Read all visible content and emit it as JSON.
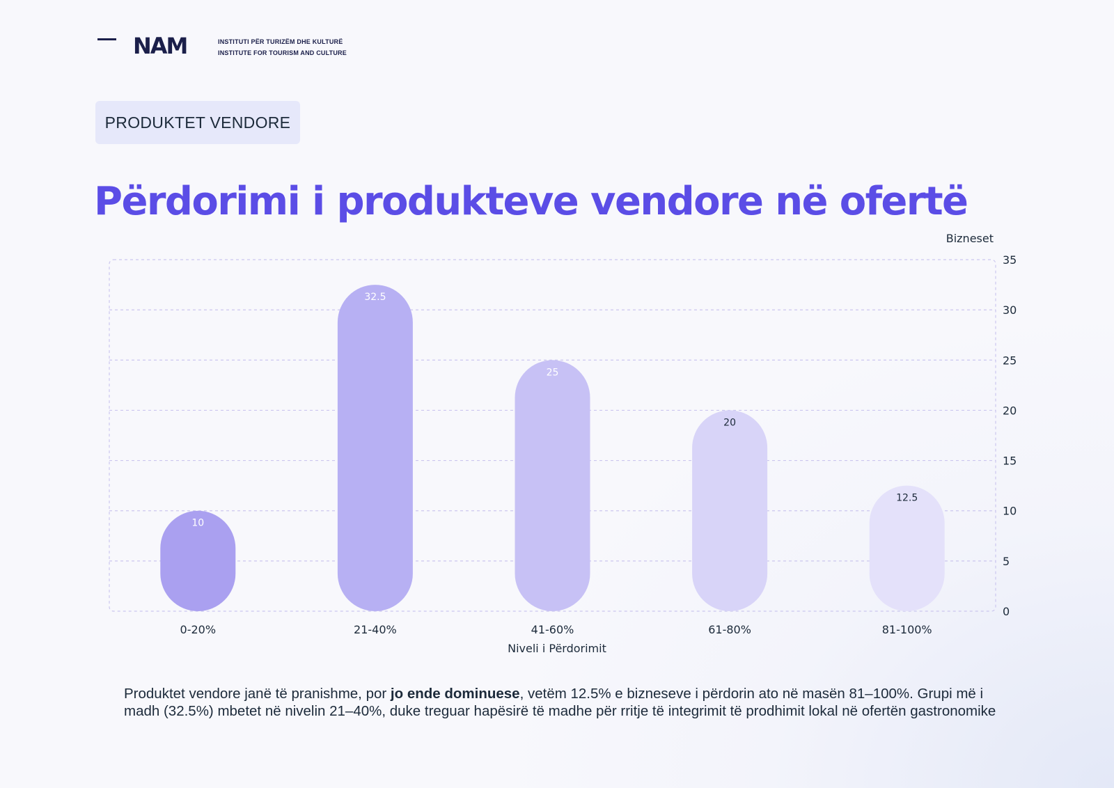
{
  "header": {
    "logo": "NAM",
    "tagline_line1": "INSTITUTI PËR TURIZËM DHE KULTURË",
    "tagline_line2": "INSTITUTE FOR TOURISM AND CULTURE"
  },
  "section_badge": "PRODUKTET VENDORE",
  "page_title": "Përdorimi i produkteve vendore në ofertë",
  "chart_data": {
    "type": "bar",
    "categories": [
      "0-20%",
      "21-40%",
      "41-60%",
      "61-80%",
      "81-100%"
    ],
    "values": [
      10,
      32.5,
      25,
      20,
      12.5
    ],
    "data_labels": [
      "10",
      "32.5",
      "25",
      "20",
      "12.5"
    ],
    "xlabel": "Niveli i Përdorimit",
    "ylabel": "Bizneset",
    "ylim": [
      0,
      35
    ],
    "yticks": [
      "0",
      "5",
      "10",
      "15",
      "20",
      "25",
      "30",
      "35"
    ],
    "y_axis_side": "right",
    "grid": true,
    "bar_colors": [
      "#aaa0f0",
      "#b7b0f3",
      "#c7c1f5",
      "#d8d4f8",
      "#e4e1fa"
    ],
    "label_colors": [
      "#ffffff",
      "#ffffff",
      "#ffffff",
      "#1c2a3a",
      "#1c2a3a"
    ]
  },
  "description": {
    "part1": "Produktet vendore janë të pranishme, por ",
    "bold": "jo ende dominuese",
    "part2": ", vetëm 12.5% e bizneseve i përdorin ato në masën 81–100%. Grupi më i madh (32.5%) mbetet në nivelin 21–40%, duke treguar hapësirë të madhe për rritje të integrimit të prodhimit lokal në ofertën gastronomike"
  }
}
